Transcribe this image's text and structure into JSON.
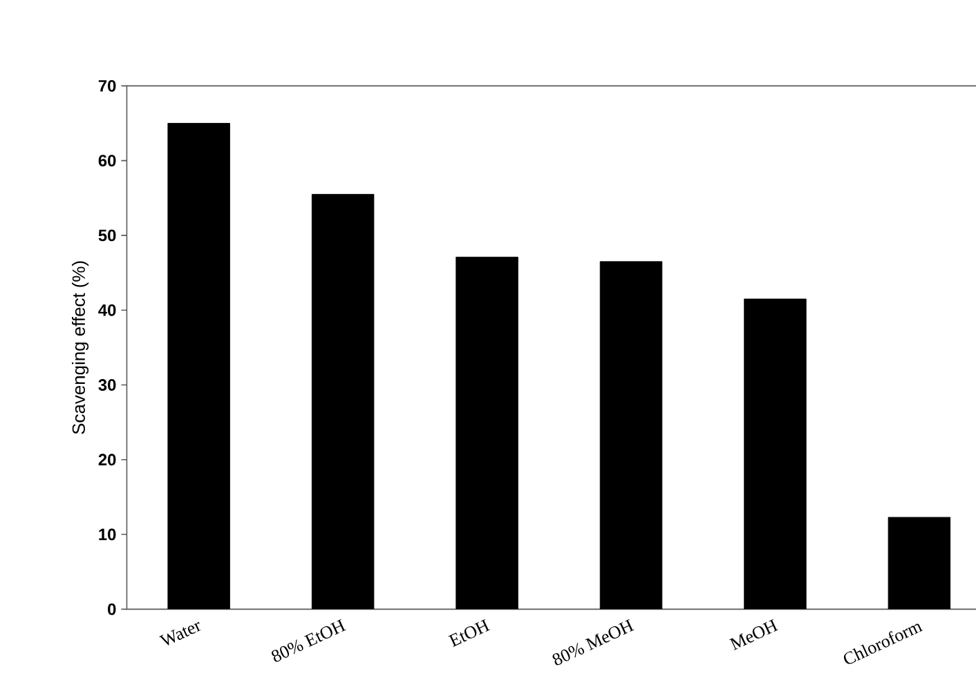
{
  "chart_data": {
    "type": "bar",
    "ylabel": "Scavenging effect (%)",
    "categories": [
      "Water",
      "80% EtOH",
      "EtOH",
      "80% MeOH",
      "MeOH",
      "Chloroform"
    ],
    "values": [
      65,
      55.5,
      47.1,
      46.5,
      41.5,
      12.3
    ],
    "color": "#000000",
    "ylim": [
      0,
      70
    ],
    "yticks": [
      0,
      10,
      20,
      30,
      40,
      50,
      60,
      70
    ]
  }
}
